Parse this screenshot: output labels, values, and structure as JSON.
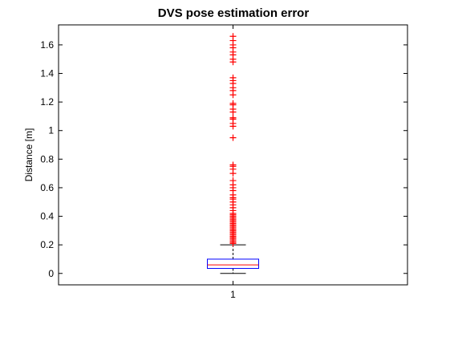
{
  "chart_data": {
    "type": "box",
    "title": "DVS pose estimation error",
    "xlabel": "",
    "ylabel": "Distance [m]",
    "ylim": [
      -0.08,
      1.74
    ],
    "yticks": [
      0,
      0.2,
      0.4,
      0.6,
      0.8,
      1,
      1.2,
      1.4,
      1.6
    ],
    "ytick_labels": [
      "0",
      "0.2",
      "0.4",
      "0.6",
      "0.8",
      "1",
      "1.2",
      "1.4",
      "1.6"
    ],
    "categories": [
      "1"
    ],
    "grid": false,
    "box": {
      "category": "1",
      "lower_whisker": 0.0,
      "q1": 0.035,
      "median": 0.06,
      "q3": 0.1,
      "upper_whisker": 0.2,
      "outliers": [
        0.21,
        0.22,
        0.23,
        0.24,
        0.25,
        0.26,
        0.27,
        0.28,
        0.29,
        0.3,
        0.31,
        0.32,
        0.33,
        0.34,
        0.35,
        0.36,
        0.37,
        0.38,
        0.39,
        0.4,
        0.41,
        0.42,
        0.44,
        0.46,
        0.48,
        0.5,
        0.52,
        0.53,
        0.55,
        0.58,
        0.6,
        0.62,
        0.65,
        0.7,
        0.73,
        0.75,
        0.76,
        0.95,
        1.03,
        1.05,
        1.08,
        1.09,
        1.13,
        1.15,
        1.18,
        1.19,
        1.25,
        1.28,
        1.3,
        1.33,
        1.35,
        1.37,
        1.48,
        1.5,
        1.53,
        1.55,
        1.58,
        1.6,
        1.63,
        1.66
      ]
    },
    "colors": {
      "box": "#0000ff",
      "median": "#ff0000",
      "whisker": "#000000",
      "outlier": "#ff0000"
    }
  }
}
